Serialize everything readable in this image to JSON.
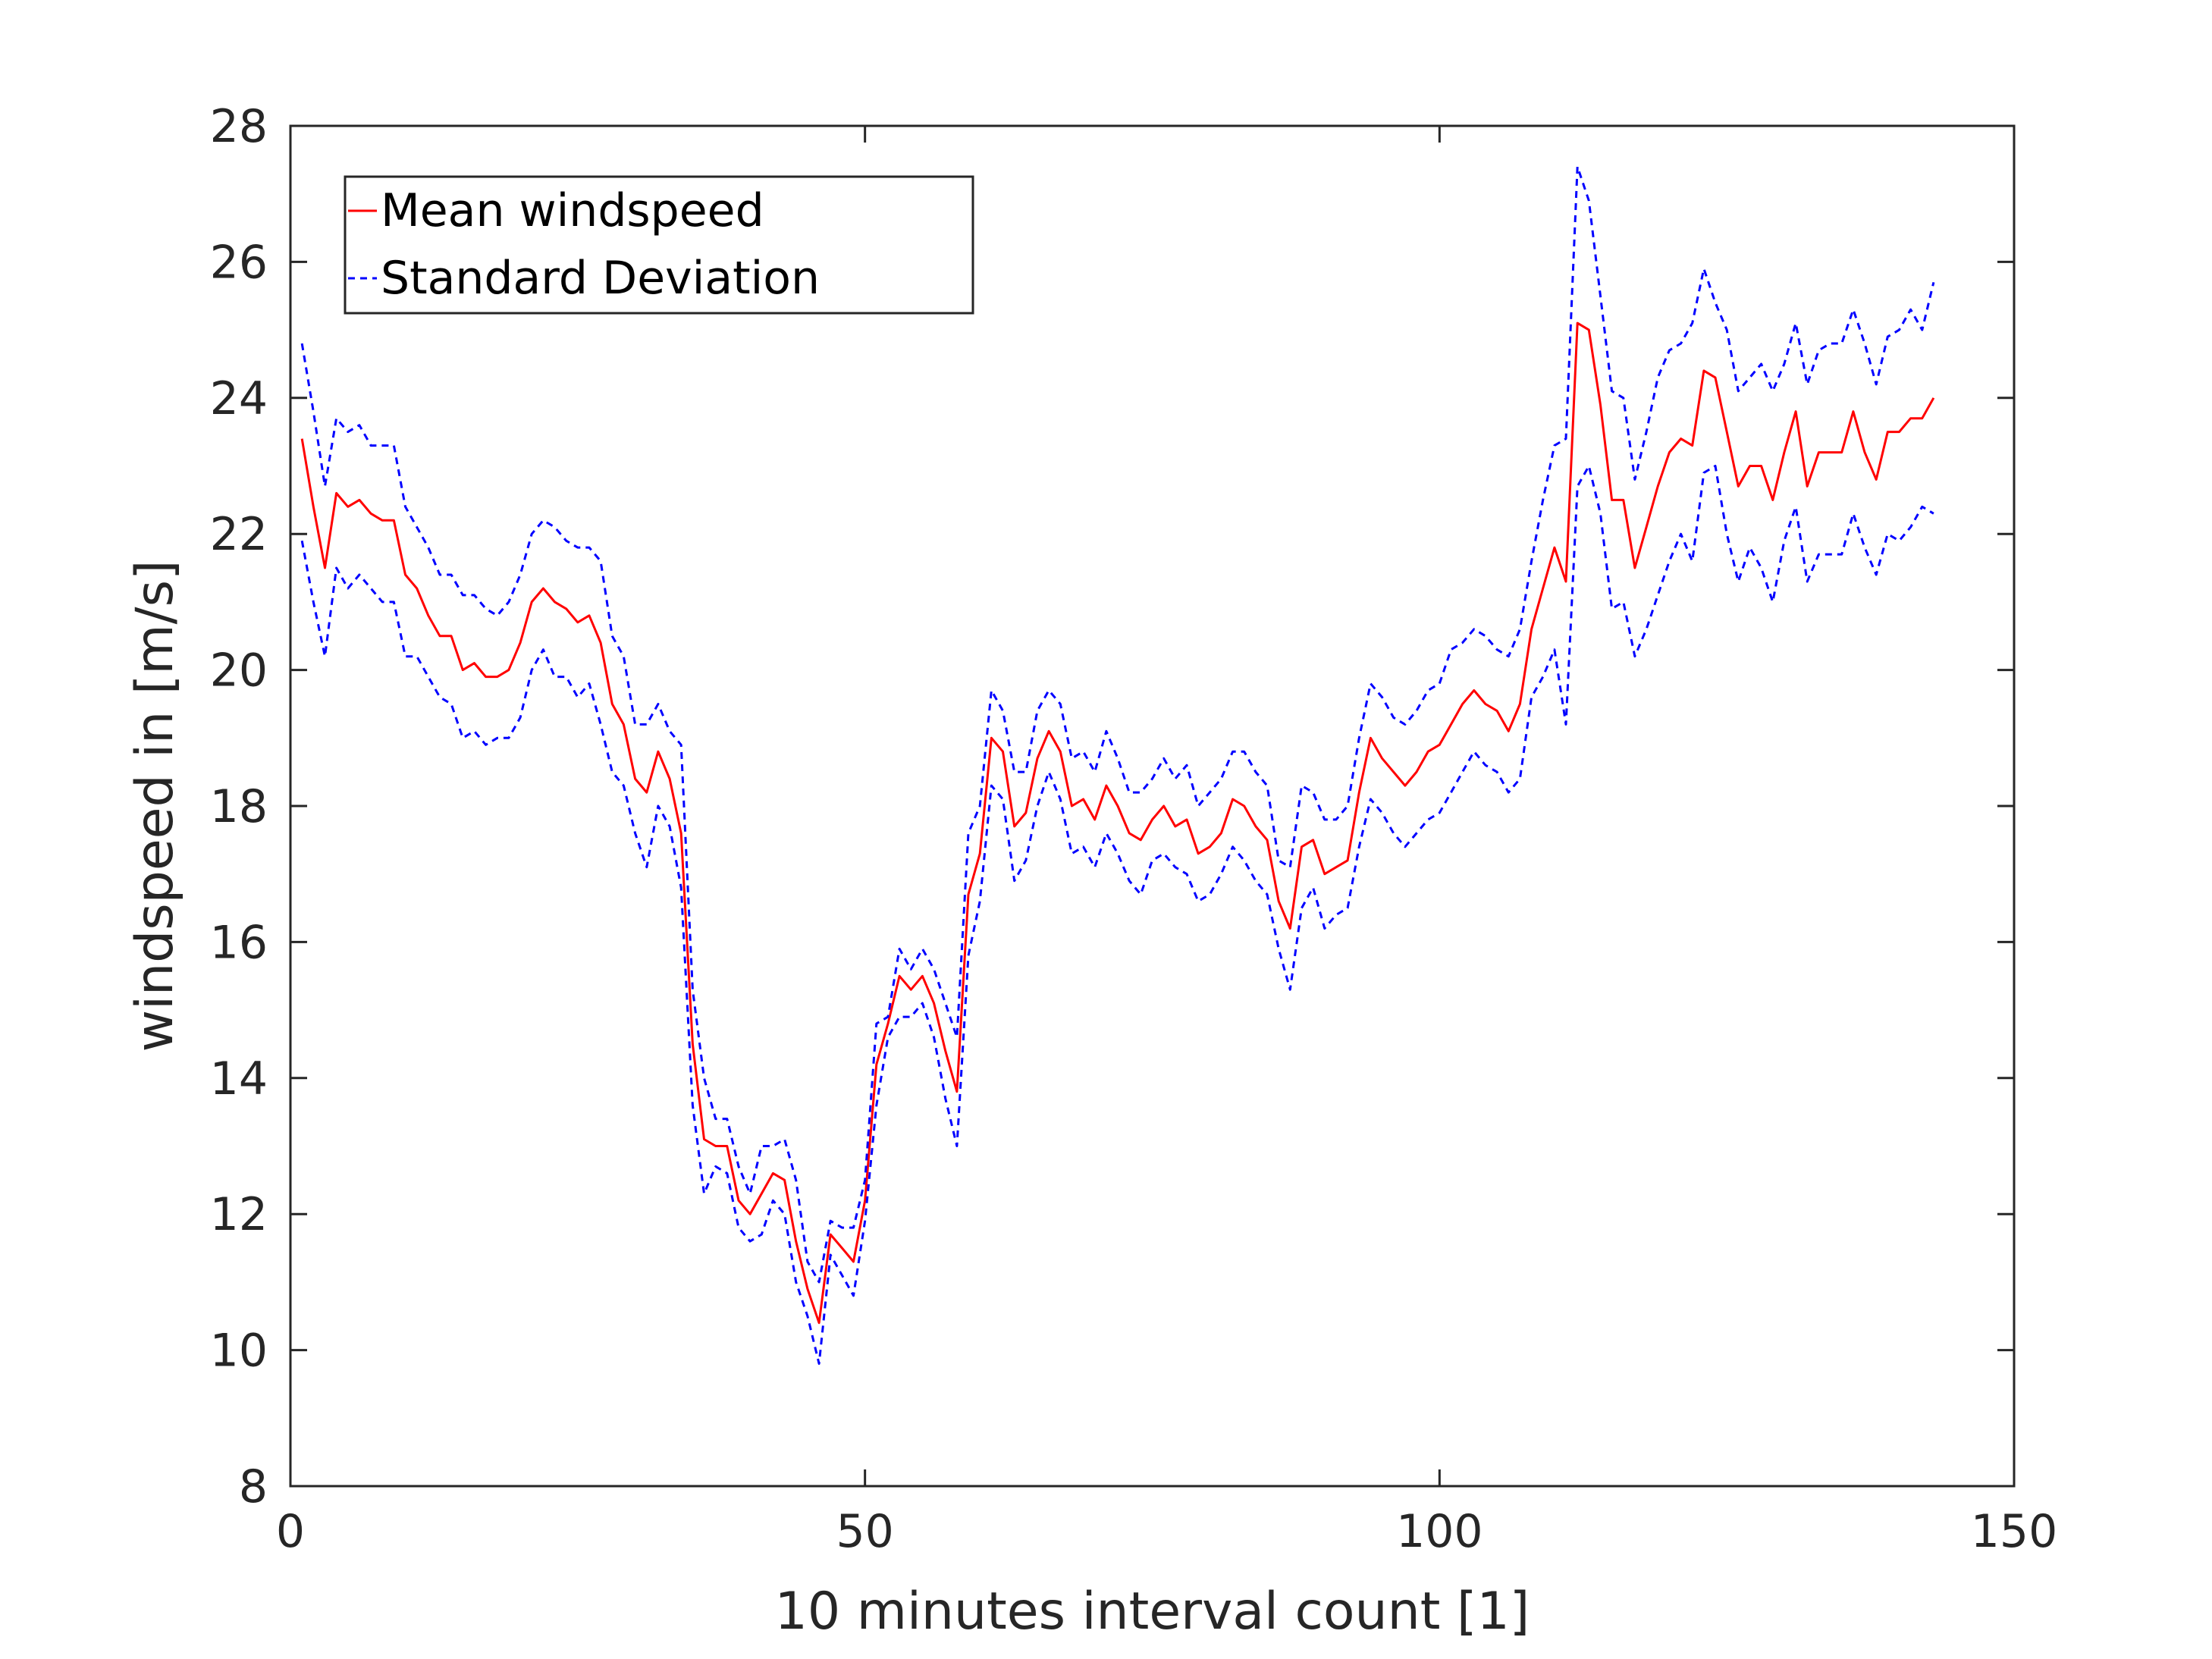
{
  "chart_data": {
    "type": "line",
    "xlabel": "10 minutes interval count [1]",
    "ylabel": "windspeed in [m/s]",
    "xlim": [
      0,
      150
    ],
    "ylim": [
      8,
      28
    ],
    "xticks": [
      0,
      50,
      100,
      150
    ],
    "yticks": [
      8,
      10,
      12,
      14,
      16,
      18,
      20,
      22,
      24,
      26,
      28
    ],
    "grid": false,
    "legend_position": "top-left",
    "x_start": 1,
    "series": [
      {
        "name": "Mean windspeed",
        "color": "#ff0000",
        "style": "solid",
        "values": [
          23.4,
          22.4,
          21.5,
          22.6,
          22.4,
          22.5,
          22.3,
          22.2,
          22.2,
          21.4,
          21.2,
          20.8,
          20.5,
          20.5,
          20.0,
          20.1,
          19.9,
          19.9,
          20.0,
          20.4,
          21.0,
          21.2,
          21.0,
          20.9,
          20.7,
          20.8,
          20.4,
          19.5,
          19.2,
          18.4,
          18.2,
          18.8,
          18.4,
          17.6,
          14.5,
          13.1,
          13.0,
          13.0,
          12.2,
          12.0,
          12.3,
          12.6,
          12.5,
          11.6,
          10.9,
          10.4,
          11.7,
          11.5,
          11.3,
          12.2,
          14.2,
          14.8,
          15.5,
          15.3,
          15.5,
          15.1,
          14.4,
          13.8,
          16.7,
          17.3,
          19.0,
          18.8,
          17.7,
          17.9,
          18.7,
          19.1,
          18.8,
          18.0,
          18.1,
          17.8,
          18.3,
          18.0,
          17.6,
          17.5,
          17.8,
          18.0,
          17.7,
          17.8,
          17.3,
          17.4,
          17.6,
          18.1,
          18.0,
          17.7,
          17.5,
          16.6,
          16.2,
          17.4,
          17.5,
          17.0,
          17.1,
          17.2,
          18.2,
          19.0,
          18.7,
          18.5,
          18.3,
          18.5,
          18.8,
          18.9,
          19.2,
          19.5,
          19.7,
          19.5,
          19.4,
          19.1,
          19.5,
          20.6,
          21.2,
          21.8,
          21.3,
          25.1,
          25.0,
          23.9,
          22.5,
          22.5,
          21.5,
          22.1,
          22.7,
          23.2,
          23.4,
          23.3,
          24.4,
          24.3,
          23.5,
          22.7,
          23.0,
          23.0,
          22.5,
          23.2,
          23.8,
          22.7,
          23.2,
          23.2,
          23.2,
          23.8,
          23.2,
          22.8,
          23.5,
          23.5,
          23.7,
          23.7,
          24.0
        ]
      },
      {
        "name": "Standard Deviation",
        "color": "#0000ff",
        "style": "dashed",
        "values": [
          24.8,
          23.8,
          22.7,
          23.7,
          23.5,
          23.6,
          23.3,
          23.3,
          23.3,
          22.4,
          22.1,
          21.8,
          21.4,
          21.4,
          21.1,
          21.1,
          20.9,
          20.8,
          21.0,
          21.4,
          22.0,
          22.2,
          22.1,
          21.9,
          21.8,
          21.8,
          21.6,
          20.5,
          20.2,
          19.2,
          19.2,
          19.5,
          19.1,
          18.9,
          15.3,
          14.0,
          13.4,
          13.4,
          12.7,
          12.3,
          13.0,
          13.0,
          13.1,
          12.5,
          11.3,
          11.0,
          11.9,
          11.8,
          11.8,
          12.5,
          14.8,
          14.9,
          15.9,
          15.6,
          15.9,
          15.6,
          15.1,
          14.6,
          17.6,
          18.0,
          19.7,
          19.4,
          18.5,
          18.5,
          19.4,
          19.7,
          19.5,
          18.7,
          18.8,
          18.5,
          19.1,
          18.7,
          18.2,
          18.2,
          18.4,
          18.7,
          18.4,
          18.6,
          18.0,
          18.2,
          18.4,
          18.8,
          18.8,
          18.5,
          18.3,
          17.2,
          17.1,
          18.3,
          18.2,
          17.8,
          17.8,
          18.0,
          19.0,
          19.8,
          19.6,
          19.3,
          19.2,
          19.4,
          19.7,
          19.8,
          20.3,
          20.4,
          20.6,
          20.5,
          20.3,
          20.2,
          20.6,
          21.6,
          22.5,
          23.3,
          23.4,
          27.4,
          26.9,
          25.5,
          24.1,
          24.0,
          22.8,
          23.5,
          24.3,
          24.7,
          24.8,
          25.1,
          25.9,
          25.4,
          25.0,
          24.1,
          24.3,
          24.5,
          24.1,
          24.5,
          25.1,
          24.2,
          24.7,
          24.8,
          24.8,
          25.3,
          24.8,
          24.2,
          24.9,
          25.0,
          25.3,
          25.0,
          25.7
        ]
      },
      {
        "name": "",
        "color": "#0000ff",
        "style": "dashed",
        "values": [
          21.9,
          21.0,
          20.2,
          21.5,
          21.2,
          21.4,
          21.2,
          21.0,
          21.0,
          20.2,
          20.2,
          19.9,
          19.6,
          19.5,
          19.0,
          19.1,
          18.9,
          19.0,
          19.0,
          19.3,
          20.0,
          20.3,
          19.9,
          19.9,
          19.6,
          19.8,
          19.2,
          18.5,
          18.3,
          17.6,
          17.1,
          18.0,
          17.7,
          16.8,
          13.6,
          12.3,
          12.7,
          12.6,
          11.8,
          11.6,
          11.7,
          12.2,
          12.0,
          11.0,
          10.5,
          9.8,
          11.4,
          11.1,
          10.8,
          11.9,
          13.6,
          14.6,
          14.9,
          14.9,
          15.1,
          14.6,
          13.7,
          13.0,
          15.8,
          16.6,
          18.3,
          18.1,
          16.9,
          17.2,
          18.0,
          18.5,
          18.1,
          17.3,
          17.4,
          17.1,
          17.6,
          17.3,
          16.9,
          16.7,
          17.2,
          17.3,
          17.1,
          17.0,
          16.6,
          16.7,
          17.0,
          17.4,
          17.2,
          16.9,
          16.7,
          15.9,
          15.3,
          16.5,
          16.8,
          16.2,
          16.4,
          16.5,
          17.4,
          18.1,
          17.9,
          17.6,
          17.4,
          17.6,
          17.8,
          17.9,
          18.2,
          18.5,
          18.8,
          18.6,
          18.5,
          18.2,
          18.4,
          19.6,
          19.9,
          20.3,
          19.2,
          22.7,
          23.0,
          22.3,
          20.9,
          21.0,
          20.2,
          20.6,
          21.1,
          21.6,
          22.0,
          21.6,
          22.9,
          23.0,
          22.0,
          21.3,
          21.8,
          21.5,
          21.0,
          21.9,
          22.4,
          21.3,
          21.7,
          21.7,
          21.7,
          22.3,
          21.8,
          21.4,
          22.0,
          21.9,
          22.1,
          22.4,
          22.3
        ]
      }
    ]
  }
}
